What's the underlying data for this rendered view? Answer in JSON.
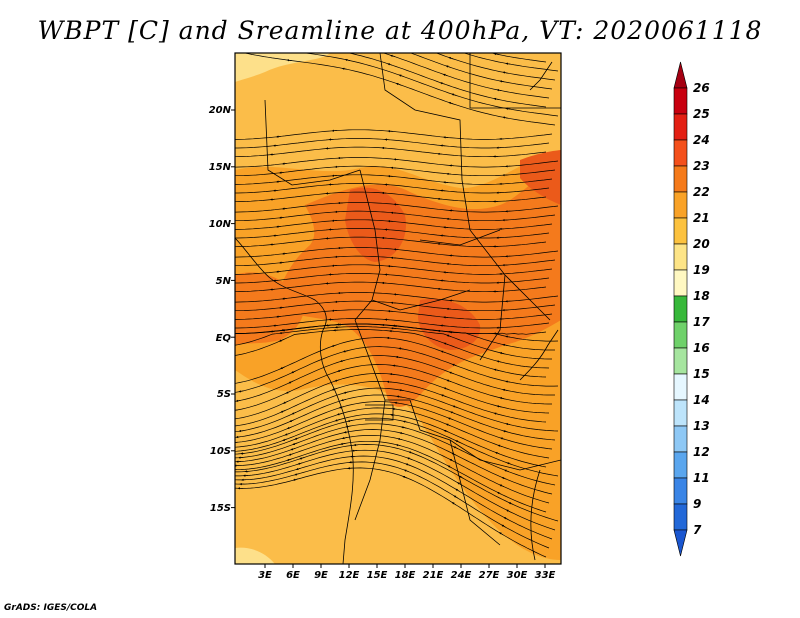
{
  "title": "WBPT [C] and Sreamline at 400hPa, VT: 2020061118",
  "footer": "GrADS: IGES/COLA",
  "map": {
    "lat_ticks": [
      "20N",
      "15N",
      "10N",
      "5N",
      "EQ",
      "5S",
      "10S",
      "15S"
    ],
    "lon_ticks": [
      "3E",
      "6E",
      "9E",
      "12E",
      "15E",
      "18E",
      "21E",
      "24E",
      "27E",
      "30E",
      "33E"
    ],
    "fill_colors": {
      "c20_21": "#fbbd49",
      "c21_22": "#f9a227",
      "c22_23": "#f47a1c",
      "c23_24": "#eb5a1a",
      "c19_20": "#fde08a"
    }
  },
  "colorbar": {
    "labels": [
      "26",
      "25",
      "24",
      "23",
      "22",
      "21",
      "20",
      "19",
      "18",
      "17",
      "16",
      "15",
      "14",
      "13",
      "12",
      "11",
      "9",
      "7"
    ],
    "colors": [
      "#a50012",
      "#c8000f",
      "#e31f13",
      "#f4501b",
      "#f57a1a",
      "#f9a227",
      "#fcc23f",
      "#fde487",
      "#fff8c2",
      "#37b83a",
      "#6fd16a",
      "#a6e59f",
      "#e6f7ff",
      "#bde4fb",
      "#8ec8f5",
      "#5aa6ee",
      "#3a85e6",
      "#2268d8",
      "#1a56d0"
    ]
  }
}
